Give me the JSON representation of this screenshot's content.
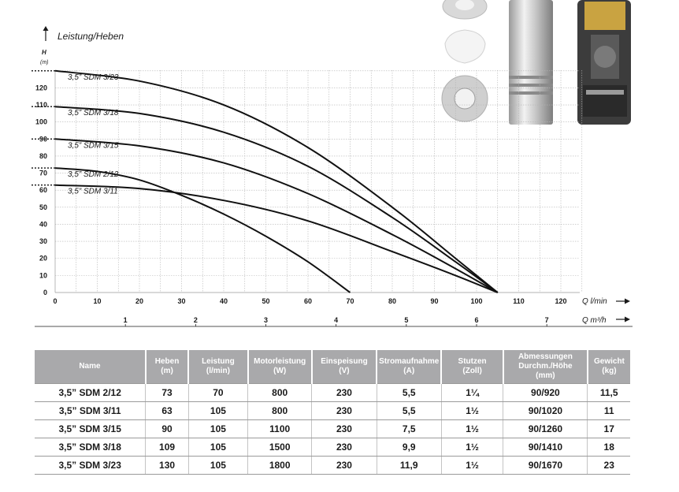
{
  "chart_data": {
    "type": "line",
    "title": "Leistung/Heben",
    "ylabel": "H",
    "yunit": "(m)",
    "xlabel": "Q l/min",
    "x2label": "Q m³/h",
    "xlim": [
      0,
      125
    ],
    "ylim": [
      0,
      140
    ],
    "xticks": [
      "0",
      "10",
      "20",
      "30",
      "40",
      "50",
      "60",
      "70",
      "80",
      "90",
      "100",
      "110",
      "120"
    ],
    "yticks": [
      "0",
      "10",
      "20",
      "30",
      "40",
      "50",
      "60",
      "70",
      "80",
      "90",
      "100",
      "110",
      "120"
    ],
    "x2ticks": [
      "1",
      "2",
      "3",
      "4",
      "5",
      "6",
      "7"
    ],
    "grid": true,
    "series": [
      {
        "name": "3,5” SDM 3/23",
        "x": [
          0,
          20,
          40,
          60,
          80,
          95,
          105
        ],
        "y": [
          130,
          124,
          110,
          85,
          50,
          20,
          0
        ]
      },
      {
        "name": "3,5” SDM 3/18",
        "x": [
          0,
          20,
          40,
          60,
          80,
          95,
          105
        ],
        "y": [
          109,
          105,
          94,
          74,
          44,
          18,
          0
        ]
      },
      {
        "name": "3,5” SDM 3/15",
        "x": [
          0,
          20,
          40,
          60,
          80,
          95,
          105
        ],
        "y": [
          90,
          86,
          76,
          58,
          34,
          14,
          0
        ]
      },
      {
        "name": "3,5” SDM 2/12",
        "x": [
          0,
          10,
          20,
          30,
          40,
          50,
          60,
          70
        ],
        "y": [
          73,
          71,
          66,
          57,
          46,
          33,
          18,
          0
        ]
      },
      {
        "name": "3,5” SDM 3/11",
        "x": [
          0,
          20,
          40,
          60,
          80,
          95,
          105
        ],
        "y": [
          63,
          61,
          54,
          42,
          24,
          10,
          0
        ]
      }
    ]
  },
  "table": {
    "headers": [
      [
        "Name"
      ],
      [
        "Heben",
        "(m)"
      ],
      [
        "Leistung",
        "(l/min)"
      ],
      [
        "Motorleistung",
        "(W)"
      ],
      [
        "Einspeisung",
        "(V)"
      ],
      [
        "Stromaufnahme",
        "(A)"
      ],
      [
        "Stutzen",
        "(Zoll)"
      ],
      [
        "Abmessungen",
        "Durchm./Höhe",
        "(mm)"
      ],
      [
        "Gewicht",
        "(kg)"
      ]
    ],
    "rows": [
      [
        "3,5” SDM 2/12",
        "73",
        "70",
        "800",
        "230",
        "5,5",
        "1¼",
        "90/920",
        "11,5"
      ],
      [
        "3,5” SDM 3/11",
        "63",
        "105",
        "800",
        "230",
        "5,5",
        "1½",
        "90/1020",
        "11"
      ],
      [
        "3,5” SDM 3/15",
        "90",
        "105",
        "1100",
        "230",
        "7,5",
        "1½",
        "90/1260",
        "17"
      ],
      [
        "3,5” SDM 3/18",
        "109",
        "105",
        "1500",
        "230",
        "9,9",
        "1½",
        "90/1410",
        "18"
      ],
      [
        "3,5” SDM 3/23",
        "130",
        "105",
        "1800",
        "230",
        "11,9",
        "1½",
        "90/1670",
        "23"
      ]
    ]
  },
  "images": {
    "parts": "pump-parts-photo",
    "pipe": "pump-body-photo",
    "motor": "pump-cutaway-photo"
  }
}
